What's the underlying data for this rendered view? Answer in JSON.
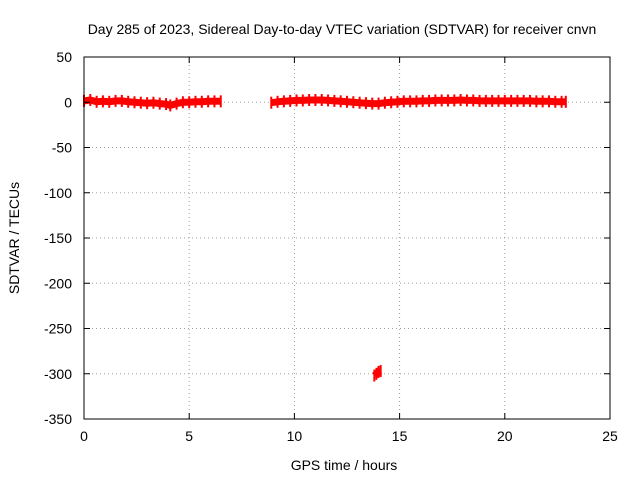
{
  "chart_data": {
    "type": "scatter",
    "title": "Day 285 of 2023, Sidereal Day-to-day VTEC variation (SDTVAR) for receiver cnvn",
    "xlabel": "GPS time / hours",
    "ylabel": "SDTVAR / TECUs",
    "xlim": [
      0,
      25
    ],
    "ylim": [
      -350,
      50
    ],
    "x_ticks": [
      0,
      5,
      10,
      15,
      20,
      25
    ],
    "y_ticks": [
      50,
      0,
      -50,
      -100,
      -150,
      -200,
      -250,
      -300,
      -350
    ],
    "grid": true,
    "legend": "none",
    "series_color": "#ff0000",
    "series": [
      {
        "segments": [
          {
            "points": [
              [
                0.0,
                1.5
              ],
              [
                0.3,
                2.5
              ],
              [
                0.6,
                0.5
              ],
              [
                0.9,
                1.0
              ],
              [
                1.2,
                0.5
              ],
              [
                1.5,
                1.5
              ],
              [
                1.8,
                1.5
              ],
              [
                2.1,
                0.5
              ],
              [
                2.4,
                0.0
              ],
              [
                2.7,
                -0.5
              ],
              [
                3.0,
                -1.0
              ],
              [
                3.3,
                -0.5
              ],
              [
                3.6,
                -1.5
              ],
              [
                3.9,
                -2.0
              ],
              [
                4.1,
                -3.5
              ],
              [
                4.4,
                -1.5
              ],
              [
                4.7,
                0.0
              ],
              [
                5.0,
                0.0
              ],
              [
                5.3,
                0.5
              ],
              [
                5.6,
                0.5
              ],
              [
                5.9,
                1.0
              ],
              [
                6.2,
                1.0
              ],
              [
                6.5,
                1.0
              ]
            ]
          },
          {
            "points": [
              [
                8.9,
                -0.5
              ],
              [
                9.2,
                0.5
              ],
              [
                9.5,
                1.0
              ],
              [
                9.8,
                1.5
              ],
              [
                10.1,
                2.0
              ],
              [
                10.4,
                2.0
              ],
              [
                10.7,
                2.5
              ],
              [
                11.0,
                2.5
              ],
              [
                11.3,
                2.5
              ],
              [
                11.6,
                2.0
              ],
              [
                11.9,
                1.5
              ],
              [
                12.2,
                1.0
              ],
              [
                12.5,
                0.5
              ],
              [
                12.8,
                0.0
              ],
              [
                13.1,
                -0.5
              ],
              [
                13.4,
                -1.0
              ],
              [
                13.7,
                -1.5
              ],
              [
                14.0,
                -1.5
              ],
              [
                14.3,
                -0.5
              ],
              [
                14.6,
                0.0
              ],
              [
                14.9,
                0.5
              ],
              [
                15.2,
                1.0
              ],
              [
                15.5,
                1.0
              ],
              [
                15.8,
                1.0
              ],
              [
                16.1,
                1.5
              ],
              [
                16.4,
                1.5
              ],
              [
                16.7,
                2.0
              ],
              [
                17.0,
                2.0
              ],
              [
                17.3,
                2.0
              ],
              [
                17.6,
                2.0
              ],
              [
                17.9,
                2.5
              ],
              [
                18.2,
                2.0
              ],
              [
                18.5,
                2.0
              ],
              [
                18.8,
                1.5
              ],
              [
                19.1,
                1.5
              ],
              [
                19.4,
                1.5
              ],
              [
                19.7,
                1.5
              ],
              [
                20.0,
                1.5
              ],
              [
                20.3,
                1.5
              ],
              [
                20.6,
                1.5
              ],
              [
                20.9,
                1.5
              ],
              [
                21.2,
                1.5
              ],
              [
                21.5,
                1.0
              ],
              [
                21.8,
                1.0
              ],
              [
                22.1,
                1.0
              ],
              [
                22.4,
                0.5
              ],
              [
                22.7,
                0.5
              ],
              [
                22.9,
                0.5
              ]
            ]
          },
          {
            "points": [
              [
                13.8,
                -302
              ],
              [
                13.9,
                -300
              ],
              [
                14.0,
                -298
              ],
              [
                14.1,
                -297
              ]
            ]
          }
        ]
      }
    ]
  }
}
